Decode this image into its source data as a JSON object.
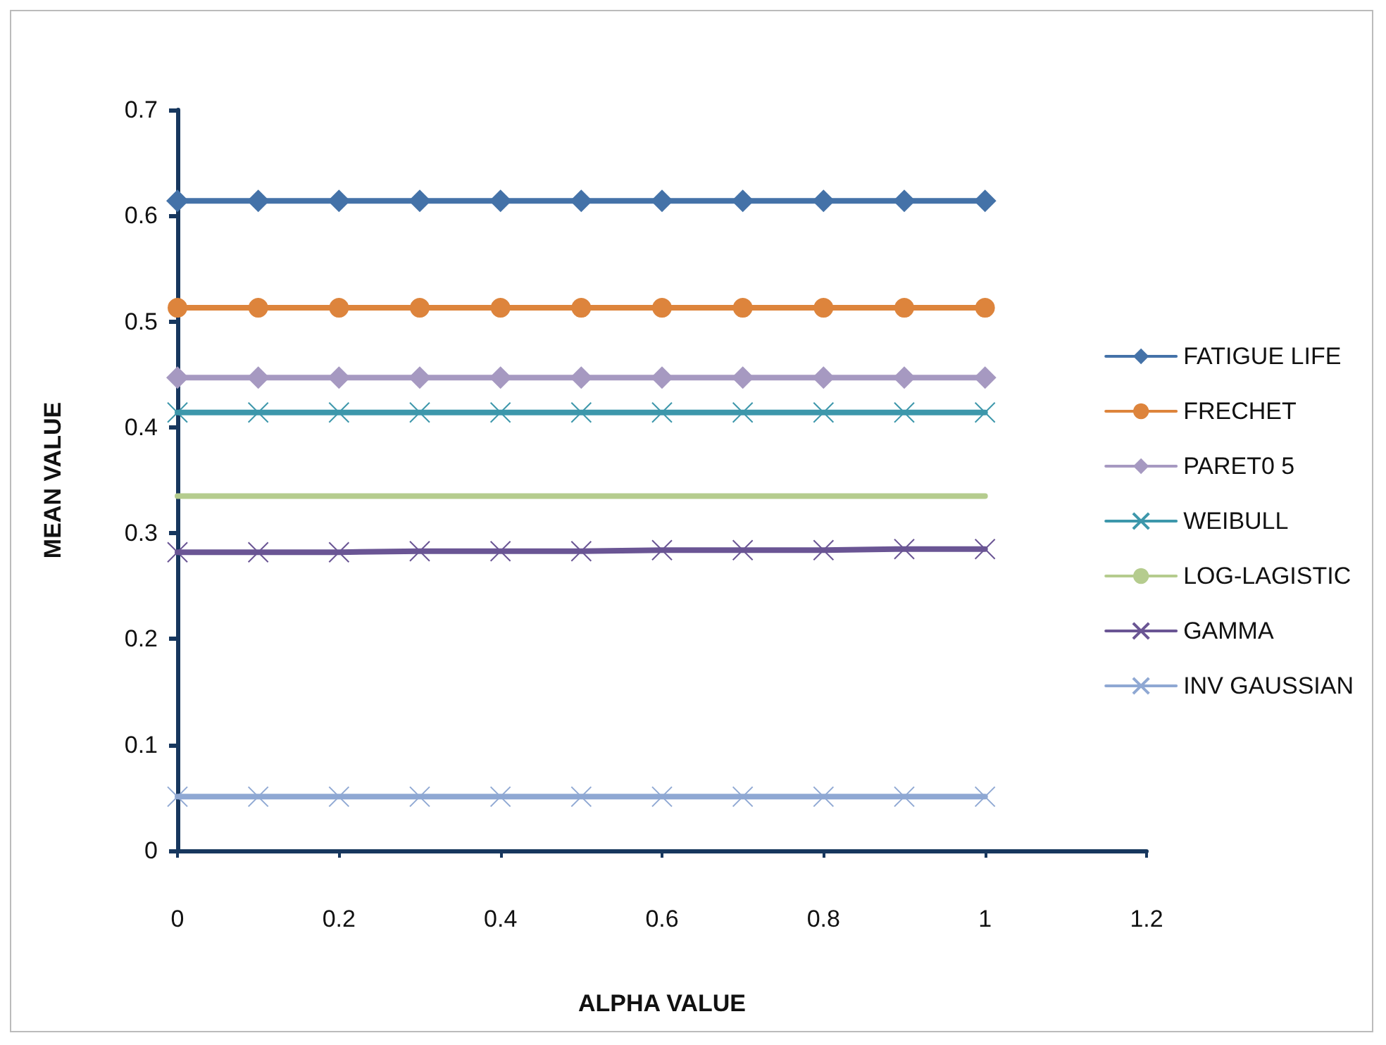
{
  "chart_data": {
    "type": "line",
    "xlabel": "ALPHA VALUE",
    "ylabel": "MEAN VALUE",
    "x": [
      0,
      0.1,
      0.2,
      0.3,
      0.4,
      0.5,
      0.6,
      0.7,
      0.8,
      0.9,
      1
    ],
    "xlim": [
      0,
      1.2
    ],
    "xticks": [
      0,
      0.2,
      0.4,
      0.6,
      0.8,
      1,
      1.2
    ],
    "ylim": [
      0,
      0.7
    ],
    "yticks": [
      0,
      0.1,
      0.2,
      0.3,
      0.4,
      0.5,
      0.6,
      0.7
    ],
    "grid": false,
    "legend": "right",
    "line_style": "solid",
    "series": [
      {
        "name": "FATIGUE LIFE",
        "color": "#4472a8",
        "marker": "diamond",
        "values": [
          0.614,
          0.614,
          0.614,
          0.614,
          0.614,
          0.614,
          0.614,
          0.614,
          0.614,
          0.614,
          0.614
        ]
      },
      {
        "name": "FRECHET",
        "color": "#dd843c",
        "marker": "circle",
        "values": [
          0.513,
          0.513,
          0.513,
          0.513,
          0.513,
          0.513,
          0.513,
          0.513,
          0.513,
          0.513,
          0.513
        ]
      },
      {
        "name": "PARET0 5",
        "color": "#a699c1",
        "marker": "diamond",
        "values": [
          0.447,
          0.447,
          0.447,
          0.447,
          0.447,
          0.447,
          0.447,
          0.447,
          0.447,
          0.447,
          0.447
        ]
      },
      {
        "name": "WEIBULL",
        "color": "#3d97ab",
        "marker": "cross",
        "values": [
          0.414,
          0.414,
          0.414,
          0.414,
          0.414,
          0.414,
          0.414,
          0.414,
          0.414,
          0.414,
          0.414
        ]
      },
      {
        "name": "LOG-LAGISTIC",
        "color": "#b5cc8e",
        "marker": "none",
        "values": [
          0.335,
          0.335,
          0.335,
          0.335,
          0.335,
          0.335,
          0.335,
          0.335,
          0.335,
          0.335,
          0.335
        ]
      },
      {
        "name": "GAMMA",
        "color": "#6a5594",
        "marker": "cross",
        "values": [
          0.282,
          0.282,
          0.282,
          0.283,
          0.283,
          0.283,
          0.284,
          0.284,
          0.284,
          0.285,
          0.285
        ]
      },
      {
        "name": "INV GAUSSIAN",
        "color": "#8fa8d3",
        "marker": "cross",
        "values": [
          0.051,
          0.051,
          0.051,
          0.051,
          0.051,
          0.051,
          0.051,
          0.051,
          0.051,
          0.051,
          0.051
        ]
      }
    ]
  }
}
